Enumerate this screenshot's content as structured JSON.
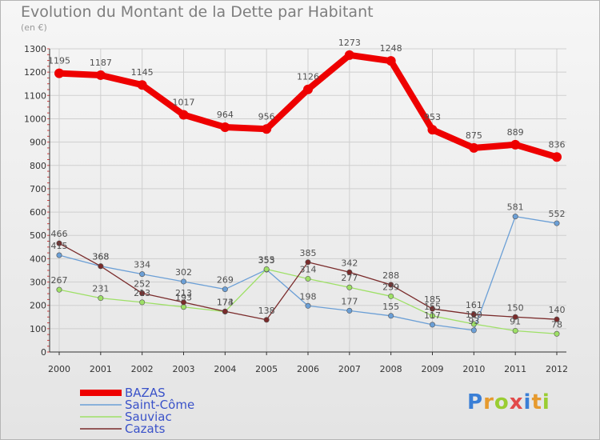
{
  "title": "Evolution du Montant de la Dette par Habitant",
  "subtitle": "(en €)",
  "logo": {
    "letters": [
      "P",
      "r",
      "o",
      "x",
      "i",
      "t",
      "i"
    ],
    "colors": [
      "#3a7fd6",
      "#e69a2e",
      "#9acd32",
      "#e24b4b",
      "#3a7fd6",
      "#e69a2e",
      "#9acd32"
    ]
  },
  "chart_data": {
    "type": "line",
    "x": [
      2000,
      2001,
      2002,
      2003,
      2004,
      2005,
      2006,
      2007,
      2008,
      2009,
      2010,
      2011,
      2012
    ],
    "ylim": [
      0,
      1300
    ],
    "yticks": [
      0,
      100,
      200,
      300,
      400,
      500,
      600,
      700,
      800,
      900,
      1000,
      1100,
      1200,
      1300
    ],
    "grid": true,
    "legend_position": "bottom-left",
    "series": [
      {
        "name": "BAZAS",
        "color": "#ee0000",
        "values": [
          1195,
          1187,
          1145,
          1017,
          964,
          956,
          1126,
          1273,
          1248,
          953,
          875,
          889,
          836
        ]
      },
      {
        "name": "Saint-Côme",
        "color": "#6b9fd6",
        "values": [
          415,
          368,
          334,
          302,
          269,
          353,
          198,
          177,
          155,
          117,
          93,
          581,
          552
        ]
      },
      {
        "name": "Sauviac",
        "color": "#9ee066",
        "values": [
          267,
          231,
          213,
          193,
          173,
          355,
          314,
          277,
          239,
          155,
          120,
          91,
          78
        ]
      },
      {
        "name": "Cazats",
        "color": "#7a2b2b",
        "values": [
          466,
          368,
          252,
          213,
          174,
          138,
          385,
          342,
          288,
          185,
          161,
          150,
          140
        ]
      }
    ]
  }
}
